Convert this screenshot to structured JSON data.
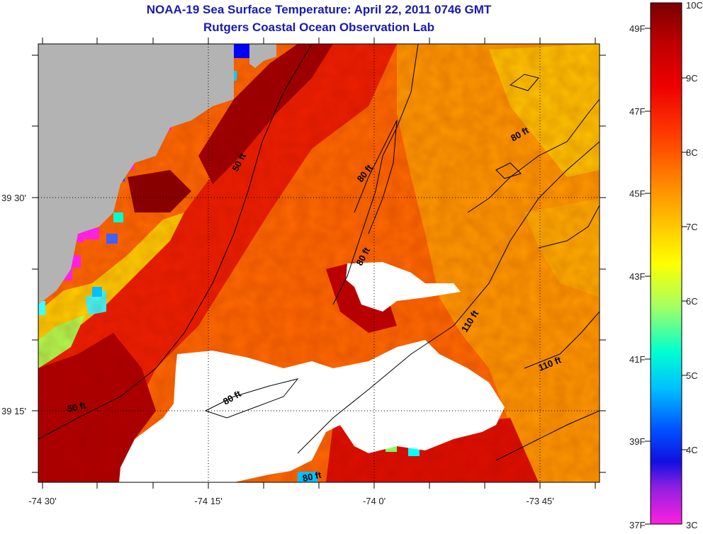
{
  "header": {
    "title": "NOAA-19 Sea Surface Temperature:  April 22, 2011 0746 GMT",
    "subtitle": "Rutgers Coastal Ocean Observation Lab"
  },
  "map": {
    "x_ticks": [
      "-74 30'",
      "-74 15'",
      "-74 0'",
      "-73 45'"
    ],
    "y_ticks": [
      "39 30'",
      "39 15'"
    ],
    "contour_labels": [
      "50 ft",
      "50 ft",
      "80 ft",
      "80 ft",
      "80 ft",
      "80 ft",
      "80 ft",
      "110 ft",
      "110 ft"
    ],
    "colors": {
      "land": "#b3b3b3",
      "cloud": "#ffffff",
      "warm": "#8b0000",
      "mid": "#ff6600",
      "cool": "#ffd400"
    }
  },
  "colorbar": {
    "celsius_labels": [
      "10C",
      "9C",
      "8C",
      "7C",
      "6C",
      "5C",
      "4C",
      "3C"
    ],
    "fahrenheit_labels": [
      "49F",
      "47F",
      "45F",
      "43F",
      "41F",
      "39F",
      "37F"
    ],
    "gradient_colors": [
      "#8b0000",
      "#dd0000",
      "#ff2a00",
      "#ff6a00",
      "#ffb000",
      "#ffff00",
      "#a0ff60",
      "#00ffff",
      "#0070ff",
      "#0000ff",
      "#a000ff",
      "#ff00dd"
    ]
  }
}
